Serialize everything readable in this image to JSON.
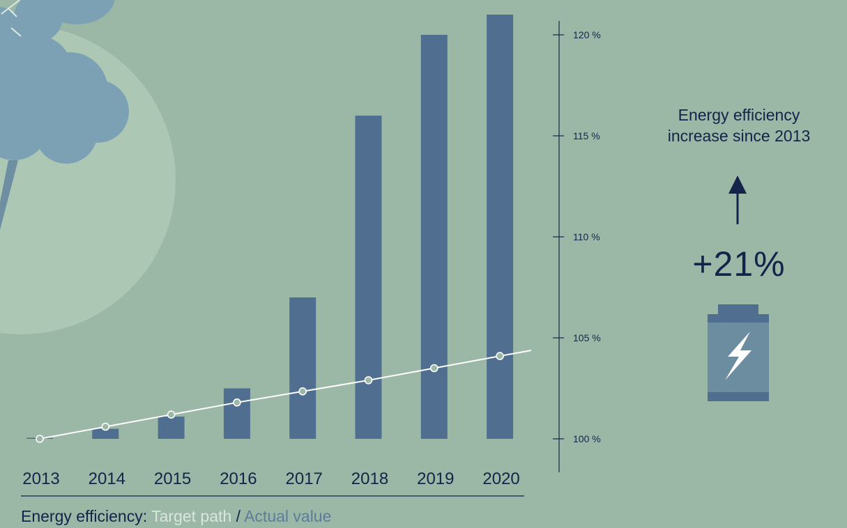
{
  "chart_data": {
    "type": "bar",
    "categories": [
      "2013",
      "2014",
      "2015",
      "2016",
      "2017",
      "2018",
      "2019",
      "2020"
    ],
    "series": [
      {
        "name": "Actual value",
        "type": "bar",
        "values": [
          100.0,
          100.5,
          101.1,
          102.5,
          107.0,
          116.0,
          120.0,
          121.0
        ]
      },
      {
        "name": "Target path",
        "type": "line",
        "values": [
          100.0,
          100.6,
          101.2,
          101.8,
          102.35,
          102.9,
          103.5,
          104.1
        ]
      }
    ],
    "y_ticks": [
      "100 %",
      "105 %",
      "110 %",
      "115 %",
      "120 %"
    ],
    "ylim": [
      98.3,
      121.2
    ],
    "y_axis_side": "right",
    "grid": false,
    "colors": {
      "background": "#9bb8a6",
      "bar": "#506e8f",
      "target_line": "#ffffff",
      "text": "#14234a"
    }
  },
  "callout": {
    "title_line1": "Energy efficiency",
    "title_line2": "increase since 2013",
    "value": "+21%",
    "arrow_icon": "up-arrow-icon",
    "battery_icon": "battery-bolt-icon"
  },
  "caption": {
    "prefix": "Energy efficiency: ",
    "target": "Target path",
    "separator": " / ",
    "actual": "Actual  value"
  }
}
